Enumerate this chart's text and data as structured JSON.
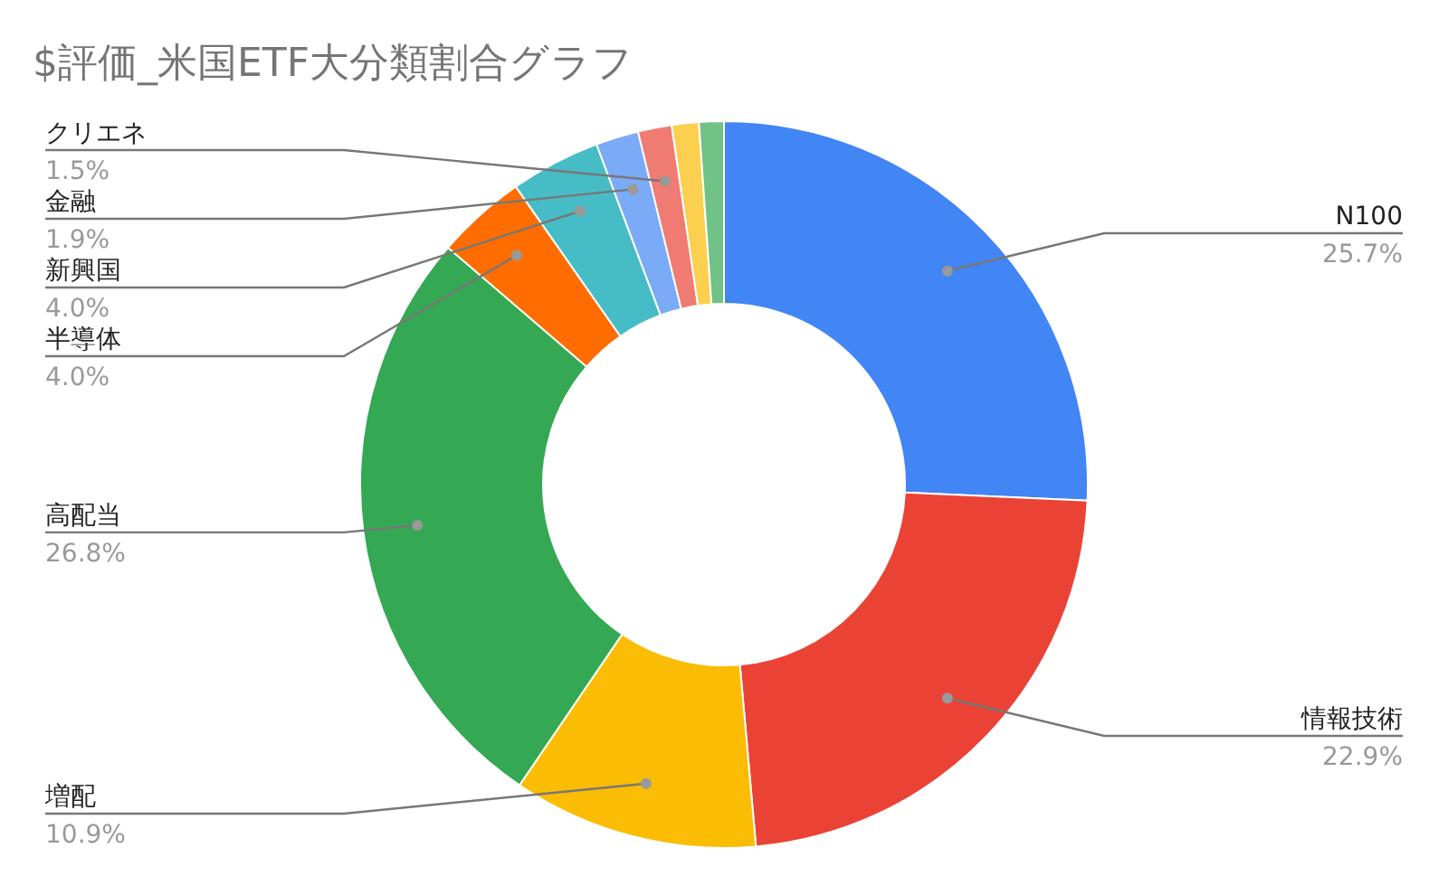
{
  "chart_data": {
    "type": "donut",
    "title": "$評価_米国ETF大分類割合グラフ",
    "categories": [
      "N100",
      "情報技術",
      "増配",
      "高配当",
      "半導体",
      "新興国",
      "金融",
      "クリエネ",
      null,
      null
    ],
    "values": [
      25.7,
      22.9,
      10.9,
      26.8,
      4.0,
      4.0,
      1.9,
      1.5,
      1.2,
      1.1
    ],
    "value_labels": [
      "25.7%",
      "22.9%",
      "10.9%",
      "26.8%",
      "4.0%",
      "4.0%",
      "1.9%",
      "1.5%",
      null,
      null
    ],
    "colors": [
      "#4285f4",
      "#ea4335",
      "#fbbc04",
      "#34a853",
      "#ff6d01",
      "#46bdc6",
      "#7baaf7",
      "#f07b72",
      "#fcd04f",
      "#71c287"
    ]
  }
}
